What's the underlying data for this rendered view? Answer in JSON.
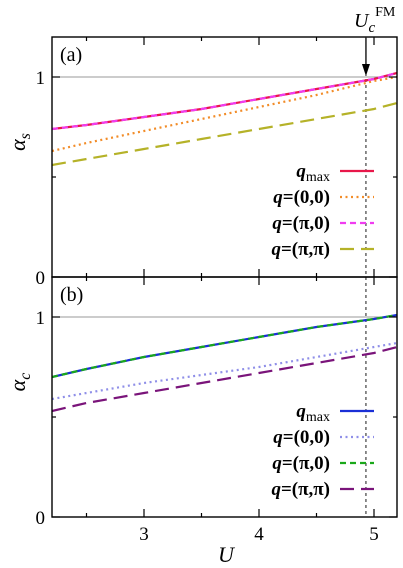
{
  "chart_data": [
    {
      "type": "line",
      "panel_label": "(a)",
      "ylabel_base": "α",
      "ylabel_sub": "s",
      "xlabel": "U",
      "xlim": [
        2.2,
        5.2
      ],
      "ylim": [
        0,
        1.2
      ],
      "xticks": [
        3,
        4,
        5
      ],
      "ytick_labels": [
        "0",
        "1"
      ],
      "ytick_values": [
        0,
        1
      ],
      "reference_line_y": 1,
      "vline_x": 4.93,
      "vline_label_base": "U",
      "vline_label_sub": "c",
      "vline_label_sup": "FM",
      "legend_position": "lower-right",
      "x": [
        2.2,
        2.5,
        3.0,
        3.5,
        4.0,
        4.5,
        5.0,
        5.2
      ],
      "series": [
        {
          "name": "q_max",
          "legend": {
            "bold": "q",
            "sub": "max"
          },
          "color": "#e8174a",
          "dash": "solid",
          "width": 2.2,
          "values": [
            0.74,
            0.76,
            0.8,
            0.84,
            0.89,
            0.94,
            0.99,
            1.02
          ]
        },
        {
          "name": "q=(0,0)",
          "legend": {
            "bold": "q",
            "rest": "=(0,0)"
          },
          "color": "#f28c28",
          "dash": "dot",
          "width": 2.2,
          "values": [
            0.63,
            0.67,
            0.73,
            0.79,
            0.85,
            0.91,
            0.98,
            1.0
          ]
        },
        {
          "name": "q=(π,0)",
          "legend": {
            "bold": "q",
            "rest": "=(π,0)"
          },
          "color": "#f03cf0",
          "dash": "dash-short",
          "width": 2.2,
          "values": [
            0.74,
            0.76,
            0.8,
            0.84,
            0.89,
            0.94,
            0.99,
            1.02
          ]
        },
        {
          "name": "q=(π,π)",
          "legend": {
            "bold": "q",
            "rest": "=(π,π)"
          },
          "color": "#b5b228",
          "dash": "dash-long",
          "width": 2.2,
          "values": [
            0.56,
            0.59,
            0.64,
            0.69,
            0.74,
            0.79,
            0.84,
            0.87
          ]
        }
      ]
    },
    {
      "type": "line",
      "panel_label": "(b)",
      "ylabel_base": "α",
      "ylabel_sub": "c",
      "xlabel": "U",
      "xlim": [
        2.2,
        5.2
      ],
      "ylim": [
        0,
        1.2
      ],
      "xticks": [
        3,
        4,
        5
      ],
      "ytick_labels": [
        "0",
        "1"
      ],
      "ytick_values": [
        0,
        1
      ],
      "reference_line_y": 1,
      "vline_x": 4.93,
      "legend_position": "lower-right",
      "x": [
        2.2,
        2.5,
        3.0,
        3.5,
        4.0,
        4.5,
        5.0,
        5.2
      ],
      "series": [
        {
          "name": "q_max",
          "legend": {
            "bold": "q",
            "sub": "max"
          },
          "color": "#1a2fd6",
          "dash": "solid",
          "width": 2.2,
          "values": [
            0.7,
            0.74,
            0.8,
            0.85,
            0.9,
            0.95,
            0.99,
            1.01
          ]
        },
        {
          "name": "q=(0,0)",
          "legend": {
            "bold": "q",
            "rest": "=(0,0)"
          },
          "color": "#8f8fe8",
          "dash": "dot",
          "width": 2.2,
          "values": [
            0.59,
            0.62,
            0.67,
            0.71,
            0.75,
            0.8,
            0.85,
            0.87
          ]
        },
        {
          "name": "q=(π,0)",
          "legend": {
            "bold": "q",
            "rest": "=(π,0)"
          },
          "color": "#1aa81a",
          "dash": "dash-short",
          "width": 2.2,
          "values": [
            0.7,
            0.74,
            0.8,
            0.85,
            0.9,
            0.95,
            0.99,
            1.01
          ]
        },
        {
          "name": "q=(π,π)",
          "legend": {
            "bold": "q",
            "rest": "=(π,π)"
          },
          "color": "#7a147a",
          "dash": "dash-long",
          "width": 2.2,
          "values": [
            0.53,
            0.57,
            0.62,
            0.67,
            0.72,
            0.77,
            0.82,
            0.85
          ]
        }
      ]
    }
  ]
}
